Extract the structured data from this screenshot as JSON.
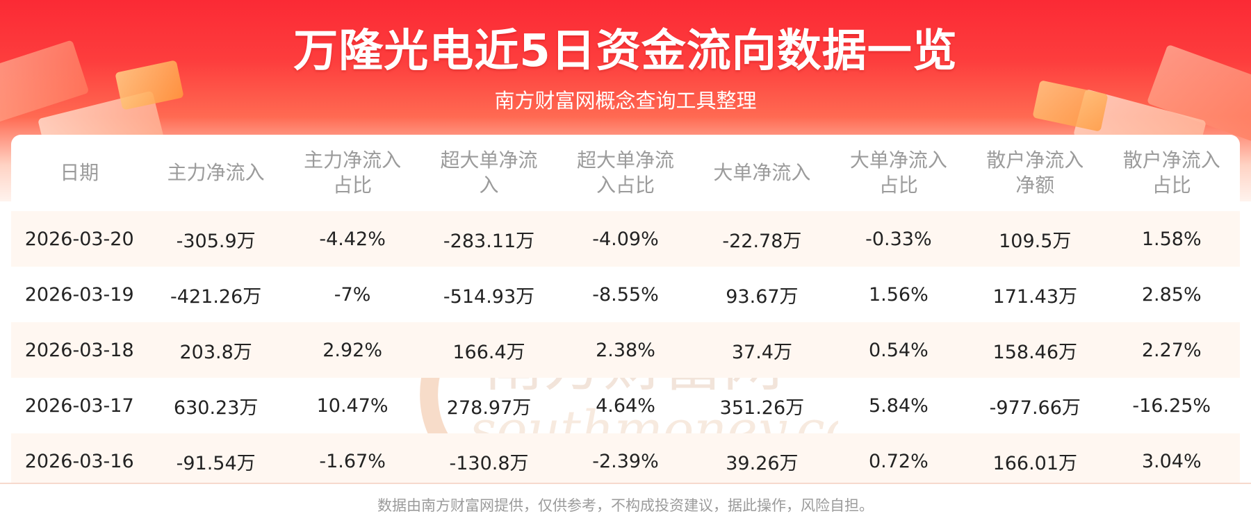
{
  "header": {
    "title": "万隆光电近5日资金流向数据一览",
    "subtitle": "南方财富网概念查询工具整理"
  },
  "table": {
    "columns": [
      [
        "日期"
      ],
      [
        "主力净流入"
      ],
      [
        "主力净流入",
        "占比"
      ],
      [
        "超大单净流",
        "入"
      ],
      [
        "超大单净流",
        "入占比"
      ],
      [
        "大单净流入"
      ],
      [
        "大单净流入",
        "占比"
      ],
      [
        "散户净流入",
        "净额"
      ],
      [
        "散户净流入",
        "占比"
      ]
    ],
    "rows": [
      [
        "2026-03-20",
        "-305.9万",
        "-4.42%",
        "-283.11万",
        "-4.09%",
        "-22.78万",
        "-0.33%",
        "109.5万",
        "1.58%"
      ],
      [
        "2026-03-19",
        "-421.26万",
        "-7%",
        "-514.93万",
        "-8.55%",
        "93.67万",
        "1.56%",
        "171.43万",
        "2.85%"
      ],
      [
        "2026-03-18",
        "203.8万",
        "2.92%",
        "166.4万",
        "2.38%",
        "37.4万",
        "0.54%",
        "158.46万",
        "2.27%"
      ],
      [
        "2026-03-17",
        "630.23万",
        "10.47%",
        "278.97万",
        "4.64%",
        "351.26万",
        "5.84%",
        "-977.66万",
        "-16.25%"
      ],
      [
        "2026-03-16",
        "-91.54万",
        "-1.67%",
        "-130.8万",
        "-2.39%",
        "39.26万",
        "0.72%",
        "166.01万",
        "3.04%"
      ]
    ]
  },
  "watermark": {
    "cn": "南方财富网",
    "en": "southmoney.com"
  },
  "footer": {
    "disclaimer": "数据由南方财富网提供，仅供参考，不构成投资建议，据此操作，风险自担。"
  },
  "colors": {
    "banner_red": "#fb2a35",
    "row_shade": "#fff7f1",
    "header_text": "#9b9b9b",
    "body_text": "#222222"
  }
}
